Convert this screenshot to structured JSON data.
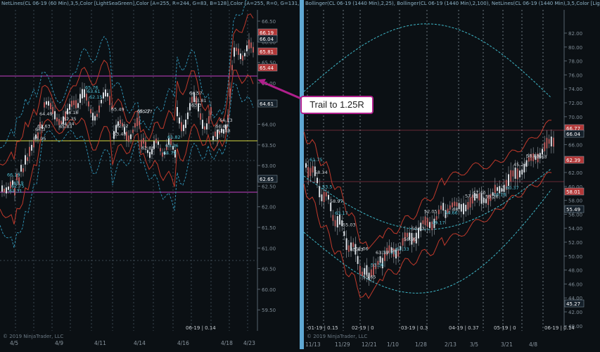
{
  "left": {
    "header": "NetLines(CL 06-19 (60 Min),3,5,Color [LightSeaGreen],Color [A=255, R=244, G=83, B=128],Color [A=255, R=0, G=131, B=",
    "y_ticks": [
      "66.50",
      "66.00",
      "65.50",
      "65.00",
      "64.50",
      "64.00",
      "63.50",
      "63.00",
      "62.50",
      "62.00",
      "61.50",
      "61.00",
      "60.50",
      "60.00",
      "59.50"
    ],
    "x_ticks": [
      "4/5",
      "4/9",
      "4/11",
      "4/14",
      "4/16",
      "4/18",
      "4/23"
    ],
    "price_tags": [
      "66.19",
      "66.04",
      "65.81",
      "65.44",
      "64.61",
      "62.65"
    ],
    "annotations": [
      "66.19",
      "65.95",
      "65.83",
      "65.76",
      "65.49",
      "65.27",
      "64.79",
      "64.57",
      "64.47",
      "64.31",
      "64.3",
      "64.04",
      "63.61",
      "63.48",
      "63.27",
      "63.26",
      "63.3",
      "62.88",
      "62.75",
      "62.63",
      "62.35",
      "62.15",
      "62.02",
      "62.06",
      "61.82",
      "63.81",
      "64.13",
      "63.9",
      "64.49",
      "64.16"
    ],
    "footer_label": "06-19 | 0.14",
    "copyright": "© 2019 NinjaTrader, LLC"
  },
  "right": {
    "header": "Bollinger(CL 06-19 (1440 Min),2,25), Bollinger(CL 06-19 (1440 Min),2,100), NetLines(CL 06-19 (1440 Min),3,5,Color [Lig",
    "y_ticks": [
      "82.00",
      "80.00",
      "78.00",
      "76.00",
      "74.00",
      "72.00",
      "70.00",
      "68.00",
      "66.00",
      "64.00",
      "62.00",
      "60.00",
      "58.00",
      "56.00",
      "54.00",
      "52.00",
      "50.00",
      "48.00",
      "46.00",
      "44.00",
      "42.00",
      "40.00"
    ],
    "x_ticks": [
      "11/13",
      "11/29",
      "12/21",
      "1/10",
      "1/28",
      "2/13",
      "3/5",
      "3/21",
      "4/8"
    ],
    "contract_labels": [
      "01-19 | 0.15",
      "02-19 | 0",
      "03-19 | 0.3",
      "04-19 | 0.37",
      "05-19 | 0",
      "06-19 | 0.14"
    ],
    "price_tags": [
      "66.77",
      "66.04",
      "62.39",
      "58.01",
      "55.49",
      "45.27"
    ],
    "annotations": [
      "61.75",
      "58.97",
      "55.63",
      "53.36",
      "54",
      "50.93",
      "49.17",
      "48",
      "47.46",
      "46.16",
      "45.23",
      "52.63",
      "53.5",
      "55.03",
      "55.65",
      "57.25",
      "56.99",
      "52.05",
      "54.66",
      "57.85",
      "59.26",
      "60.37",
      "58.88",
      "58.34",
      "63.17",
      "62.06",
      "63.39",
      "62.33"
    ],
    "copyright": "© 2019 NinjaTrader, LLC"
  },
  "callout": "Trail to 1.25R",
  "colors": {
    "background": "#0b1014",
    "candle_up": "#d8dde2",
    "candle_down": "#b35a5a",
    "band_red": "#c0392b",
    "band_blue": "#2f8fb0",
    "band_cyan": "#3fb8c9",
    "magenta_line": "#c43fc4",
    "yellow_line": "#d6d641",
    "separator": "#5fa8d3",
    "callout_border": "#b0208c"
  }
}
